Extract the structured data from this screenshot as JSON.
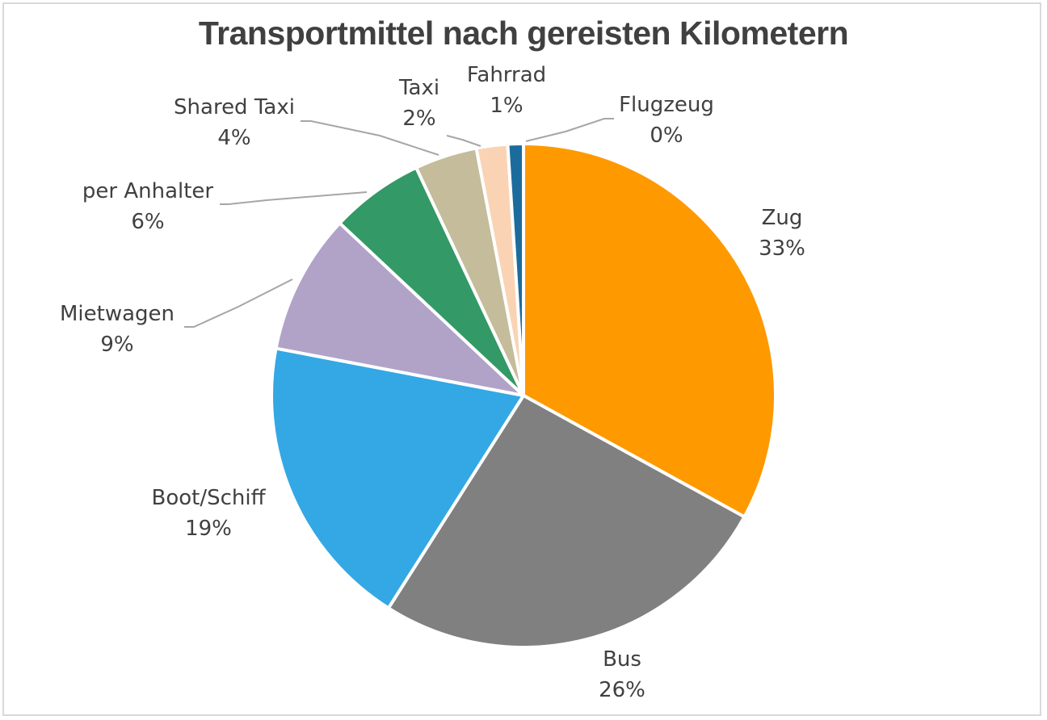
{
  "chart_data": {
    "type": "pie",
    "title": "Transportmittel nach gereisten Kilometern",
    "series": [
      {
        "name": "Zug",
        "value": 33,
        "label": "33%",
        "color": "#FF9900"
      },
      {
        "name": "Bus",
        "value": 26,
        "label": "26%",
        "color": "#808080"
      },
      {
        "name": "Boot/Schiff",
        "value": 19,
        "label": "19%",
        "color": "#33A8E4"
      },
      {
        "name": "Mietwagen",
        "value": 9,
        "label": "9%",
        "color": "#B1A2C8"
      },
      {
        "name": "per Anhalter",
        "value": 6,
        "label": "6%",
        "color": "#339966"
      },
      {
        "name": "Shared Taxi",
        "value": 4,
        "label": "4%",
        "color": "#C4BC9A"
      },
      {
        "name": "Taxi",
        "value": 2,
        "label": "2%",
        "color": "#FAD3B5"
      },
      {
        "name": "Fahrrad",
        "value": 1,
        "label": "1%",
        "color": "#1B6C9D"
      },
      {
        "name": "Flugzeug",
        "value": 0,
        "label": "0%",
        "color": "#E7D77C"
      }
    ]
  }
}
